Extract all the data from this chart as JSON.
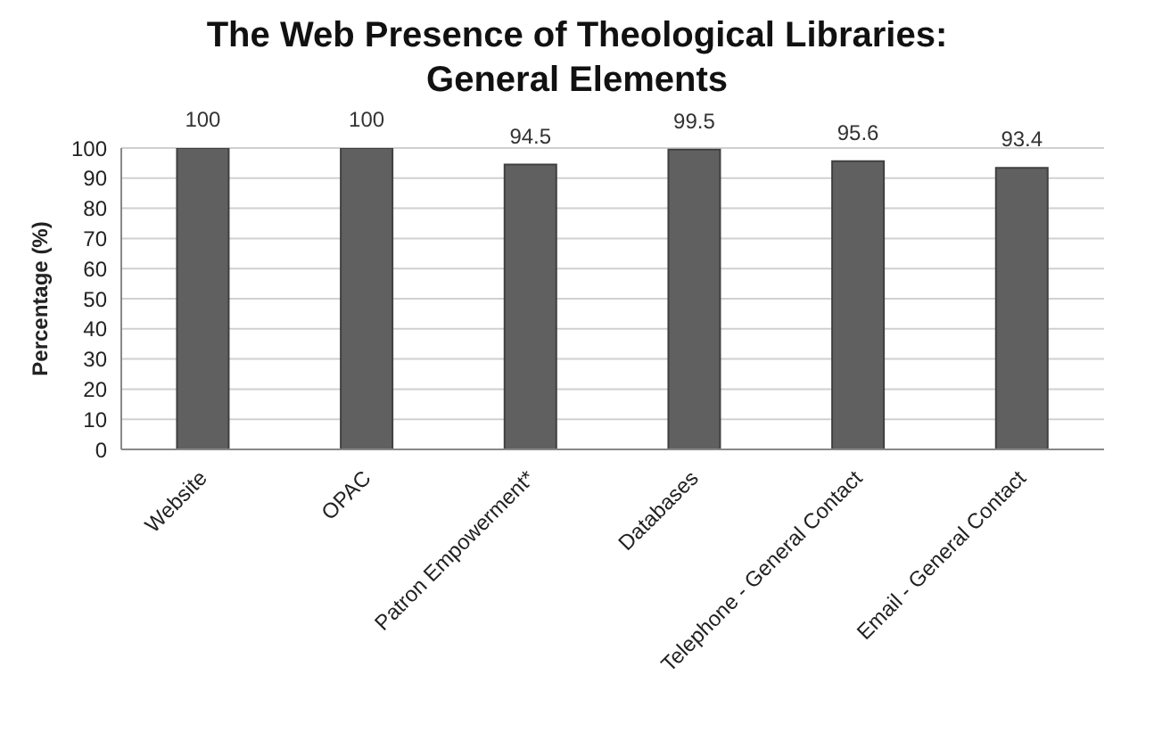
{
  "chart_data": {
    "type": "bar",
    "title": "The Web Presence of Theological Libraries: General Elements",
    "ylabel": "Percentage (%)",
    "categories": [
      "Website",
      "OPAC",
      "Patron Empowerment*",
      "Databases",
      "Telephone - General Contact",
      "Email - General Contact"
    ],
    "values": [
      100,
      100,
      94.5,
      99.5,
      95.6,
      93.4
    ],
    "color": "#606060",
    "ylim": [
      0,
      100
    ],
    "yticks": [
      0,
      10,
      20,
      30,
      40,
      50,
      60,
      70,
      80,
      90,
      100
    ],
    "grid": "y",
    "data_labels": true
  }
}
